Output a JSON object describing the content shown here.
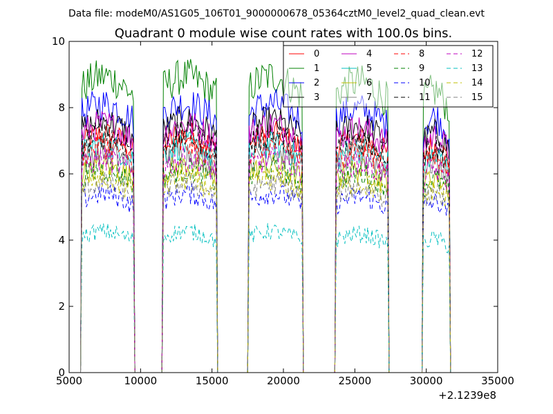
{
  "header": {
    "data_file": "Data file: modeM0/AS1G05_106T01_9000000678_05364cztM0_level2_quad_clean.evt"
  },
  "chart_data": {
    "type": "line",
    "title": "Quadrant 0 module wise count rates with 100.0s bins.",
    "xlabel": "",
    "ylabel": "",
    "x_offset_label": "+2.1239e8",
    "xlim": [
      5000,
      35000
    ],
    "ylim": [
      0,
      10
    ],
    "xticks": [
      5000,
      10000,
      15000,
      20000,
      25000,
      30000,
      35000
    ],
    "yticks": [
      0,
      2,
      4,
      6,
      8,
      10
    ],
    "grid": false,
    "legend_position": "top-right",
    "bin_size_s": 100,
    "segments": [
      {
        "start": 5900,
        "end": 9500
      },
      {
        "start": 11600,
        "end": 15300
      },
      {
        "start": 17600,
        "end": 21300
      },
      {
        "start": 23700,
        "end": 27300
      },
      {
        "start": 29800,
        "end": 31600
      }
    ],
    "gaps_zero": [
      [
        9500,
        11600
      ],
      [
        15300,
        17600
      ],
      [
        21300,
        23700
      ],
      [
        27300,
        29800
      ]
    ],
    "series": [
      {
        "name": "0",
        "color": "#ff0000",
        "dash": "solid",
        "mean": 6.9
      },
      {
        "name": "1",
        "color": "#008000",
        "dash": "solid",
        "mean": 8.6
      },
      {
        "name": "2",
        "color": "#0000ff",
        "dash": "solid",
        "mean": 7.8
      },
      {
        "name": "3",
        "color": "#000000",
        "dash": "solid",
        "mean": 7.3
      },
      {
        "name": "4",
        "color": "#bf00bf",
        "dash": "solid",
        "mean": 7.2
      },
      {
        "name": "5",
        "color": "#00bfbf",
        "dash": "solid",
        "mean": 6.6
      },
      {
        "name": "6",
        "color": "#bfbf00",
        "dash": "solid",
        "mean": 6.0
      },
      {
        "name": "7",
        "color": "#808080",
        "dash": "solid",
        "mean": 6.4
      },
      {
        "name": "8",
        "color": "#ff0000",
        "dash": "dashed",
        "mean": 6.6
      },
      {
        "name": "9",
        "color": "#008000",
        "dash": "dashed",
        "mean": 5.9
      },
      {
        "name": "10",
        "color": "#0000ff",
        "dash": "dashed",
        "mean": 5.2
      },
      {
        "name": "11",
        "color": "#000000",
        "dash": "dashed",
        "mean": 6.9
      },
      {
        "name": "12",
        "color": "#bf00bf",
        "dash": "dashed",
        "mean": 6.2
      },
      {
        "name": "13",
        "color": "#00bfbf",
        "dash": "dashed",
        "mean": 4.1
      },
      {
        "name": "14",
        "color": "#bfbf00",
        "dash": "dashed",
        "mean": 5.6
      },
      {
        "name": "15",
        "color": "#808080",
        "dash": "dashed",
        "mean": 5.5
      }
    ]
  }
}
